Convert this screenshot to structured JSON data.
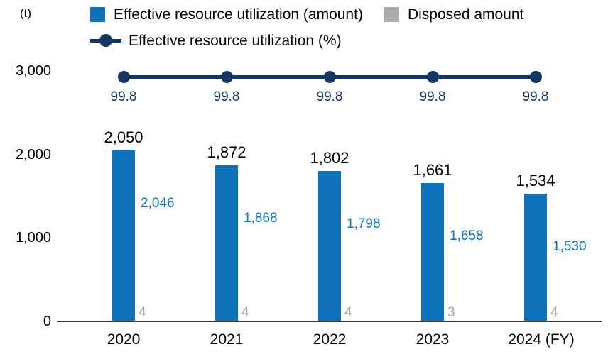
{
  "unit_label": "(t)",
  "legend": {
    "effective_amount": "Effective resource utilization (amount)",
    "disposed": "Disposed amount",
    "effective_percent": "Effective resource utilization (%)"
  },
  "colors": {
    "bar_blue": "#0F72BA",
    "disposed_gray": "#ABABAB",
    "gray_label": "#A6A6A6",
    "navy": "#133760",
    "axis": "#3D3D3D",
    "text_black": "#000000"
  },
  "chart_data": {
    "type": "bar",
    "subtype": "stacked bars with overlaid line (combo chart)",
    "categories": [
      "2020",
      "2021",
      "2022",
      "2023",
      "2024 (FY)"
    ],
    "series": [
      {
        "name": "Effective resource utilization (amount)",
        "type": "bar",
        "color": "#0F72BA",
        "values": [
          2046,
          1868,
          1798,
          1658,
          1530
        ],
        "labels": [
          "2,046",
          "1,868",
          "1,798",
          "1,658",
          "1,530"
        ]
      },
      {
        "name": "Disposed amount",
        "type": "bar",
        "color": "#ABABAB",
        "values": [
          4,
          4,
          4,
          3,
          4
        ],
        "labels": [
          "4",
          "4",
          "4",
          "3",
          "4"
        ]
      },
      {
        "name": "Effective resource utilization (%)",
        "type": "line",
        "color": "#133760",
        "values": [
          99.8,
          99.8,
          99.8,
          99.8,
          99.8
        ],
        "labels": [
          "99.8",
          "99.8",
          "99.8",
          "99.8",
          "99.8"
        ]
      }
    ],
    "totals": {
      "values": [
        2050,
        1872,
        1802,
        1661,
        1534
      ],
      "labels": [
        "2,050",
        "1,872",
        "1,802",
        "1,661",
        "1,534"
      ]
    },
    "ylabel": "(t)",
    "ylim": [
      0,
      3000
    ],
    "yticks": {
      "values": [
        3000,
        2000,
        1000,
        0
      ],
      "labels": [
        "3,000",
        "2,000",
        "1,000",
        "0"
      ]
    },
    "grid": false,
    "legend_position": "top"
  }
}
